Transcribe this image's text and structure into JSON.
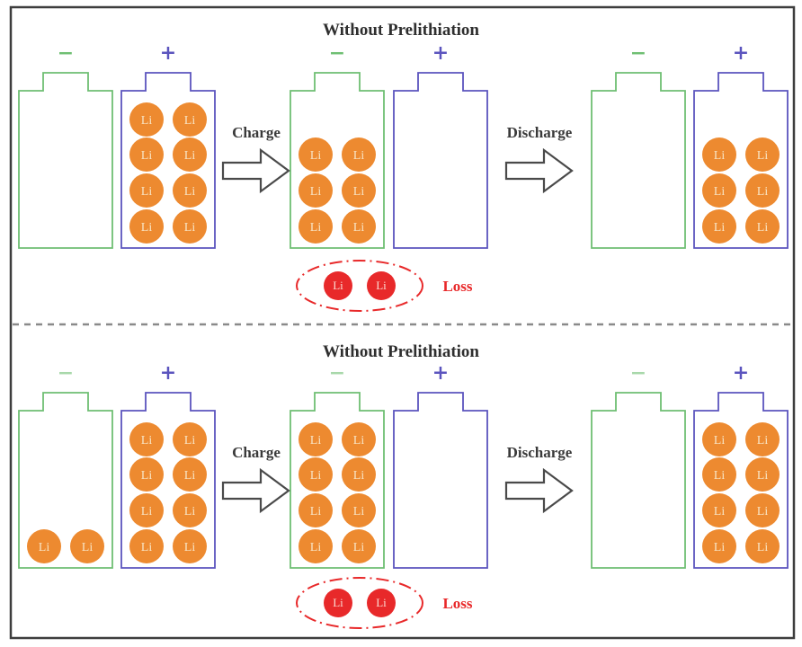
{
  "figure": {
    "li_label": "Li",
    "colors": {
      "anode_outline": "#6fbf73",
      "cathode_outline": "#5b54be",
      "li_fill": "#ed8a30",
      "li_text": "#f8e3c2",
      "loss_red": "#e8292a",
      "text_dark": "#2f2f2f",
      "arrow_stroke": "#4a4a4a",
      "border": "#3d3d3d",
      "separator": "#8a8a8a",
      "background": "#ffffff"
    },
    "panels": [
      {
        "title": "Without Prelithiation",
        "stages": [
          {
            "anode": {
              "sign": "−",
              "li_rows": []
            },
            "cathode": {
              "sign": "+",
              "li_rows": [
                1,
                2,
                3,
                4
              ]
            }
          },
          {
            "anode": {
              "sign": "−",
              "li_rows": [
                2,
                3,
                4
              ]
            },
            "cathode": {
              "sign": "+",
              "li_rows": []
            }
          },
          {
            "anode": {
              "sign": "−",
              "li_rows": []
            },
            "cathode": {
              "sign": "+",
              "li_rows": [
                2,
                3,
                4
              ]
            }
          }
        ],
        "arrows": [
          {
            "label": "Charge"
          },
          {
            "label": "Discharge"
          }
        ],
        "loss": {
          "label": "Loss",
          "li_count": 2
        }
      },
      {
        "title": "Without Prelithiation",
        "stages": [
          {
            "anode": {
              "sign": "−",
              "li_rows": [
                4
              ]
            },
            "cathode": {
              "sign": "+",
              "li_rows": [
                1,
                2,
                3,
                4
              ]
            }
          },
          {
            "anode": {
              "sign": "−",
              "li_rows": [
                1,
                2,
                3,
                4
              ]
            },
            "cathode": {
              "sign": "+",
              "li_rows": []
            }
          },
          {
            "anode": {
              "sign": "−",
              "li_rows": []
            },
            "cathode": {
              "sign": "+",
              "li_rows": [
                1,
                2,
                3,
                4
              ]
            }
          }
        ],
        "arrows": [
          {
            "label": "Charge"
          },
          {
            "label": "Discharge"
          }
        ],
        "loss": {
          "label": "Loss",
          "li_count": 2
        }
      }
    ]
  }
}
